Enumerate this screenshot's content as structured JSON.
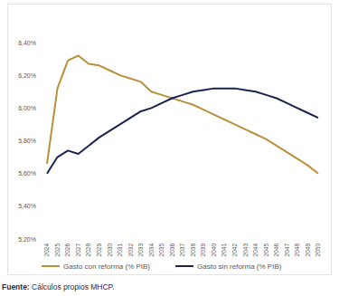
{
  "chart_data": {
    "type": "line",
    "x": [
      2024,
      2025,
      2026,
      2027,
      2028,
      2029,
      2030,
      2031,
      2032,
      2033,
      2034,
      2035,
      2036,
      2037,
      2038,
      2039,
      2040,
      2041,
      2042,
      2043,
      2044,
      2045,
      2046,
      2047,
      2048,
      2049,
      2050
    ],
    "series": [
      {
        "name": "Gasto con reforma (% PIB)",
        "color": "#b8913a",
        "values": [
          5.66,
          6.12,
          6.29,
          6.32,
          6.27,
          6.26,
          6.23,
          6.2,
          6.18,
          6.16,
          6.1,
          6.08,
          6.06,
          6.04,
          6.02,
          5.99,
          5.96,
          5.93,
          5.9,
          5.87,
          5.84,
          5.81,
          5.77,
          5.73,
          5.69,
          5.65,
          5.6
        ]
      },
      {
        "name": "Gasto sin reforma (% PIB)",
        "color": "#1a2350",
        "values": [
          5.6,
          5.7,
          5.74,
          5.72,
          5.77,
          5.82,
          5.86,
          5.9,
          5.94,
          5.98,
          6.0,
          6.03,
          6.06,
          6.08,
          6.1,
          6.11,
          6.12,
          6.12,
          6.12,
          6.11,
          6.1,
          6.08,
          6.06,
          6.03,
          6.0,
          5.97,
          5.94
        ]
      }
    ],
    "xlim": [
      2024,
      2050
    ],
    "xticks": [
      2024,
      2025,
      2026,
      2027,
      2028,
      2029,
      2030,
      2031,
      2032,
      2033,
      2034,
      2035,
      2036,
      2037,
      2038,
      2039,
      2040,
      2041,
      2042,
      2043,
      2044,
      2045,
      2046,
      2047,
      2048,
      2049,
      2050
    ],
    "ylim": [
      5.2,
      6.4
    ],
    "yticks": [
      {
        "value": 5.2,
        "label": "5,20%"
      },
      {
        "value": 5.4,
        "label": "5,40%"
      },
      {
        "value": 5.6,
        "label": "5,60%"
      },
      {
        "value": 5.8,
        "label": "5,80%"
      },
      {
        "value": 6.0,
        "label": "6,00%"
      },
      {
        "value": 6.2,
        "label": "6,20%"
      },
      {
        "value": 6.4,
        "label": "6,40%"
      }
    ],
    "grid": false,
    "legend": "bottom",
    "source": "Fuente: Cálculos propios MHCP."
  }
}
